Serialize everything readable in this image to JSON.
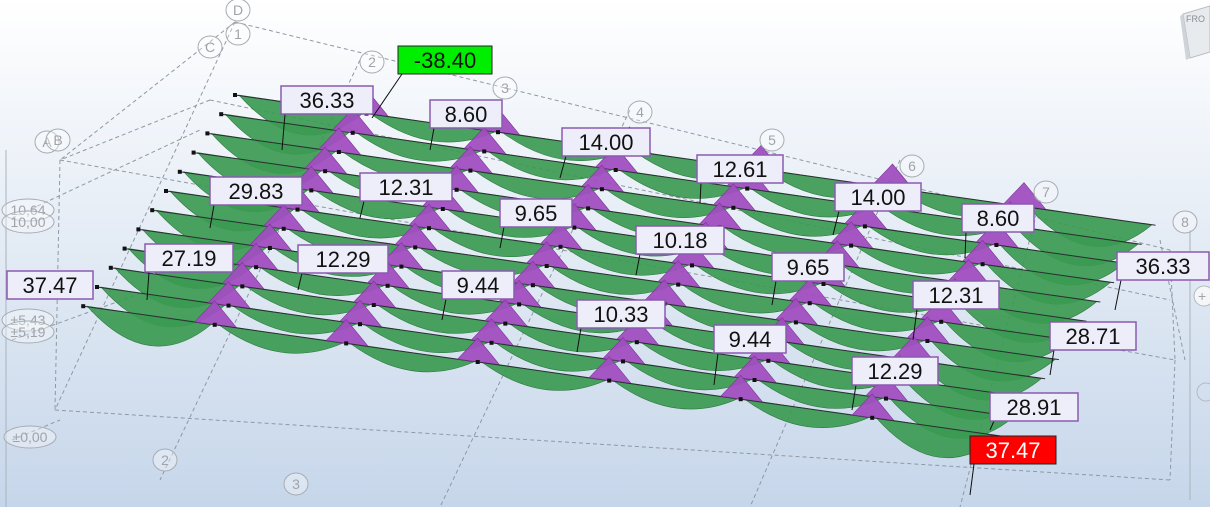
{
  "viewcube": {
    "face_label": "FRO"
  },
  "grid": {
    "axes_numbers": [
      "1",
      "2",
      "3",
      "4",
      "5",
      "6",
      "7",
      "8"
    ],
    "axes_letters": [
      "A",
      "B",
      "C",
      "D"
    ],
    "bottom_numbers": [
      "2",
      "3"
    ],
    "levels": [
      "10,64",
      "10,00",
      "±5,43",
      "±5,19",
      "±0,00"
    ]
  },
  "results": {
    "labels": [
      {
        "value": "-38.40",
        "kind": "min"
      },
      {
        "value": "36.33",
        "kind": "normal"
      },
      {
        "value": "8.60",
        "kind": "normal"
      },
      {
        "value": "14.00",
        "kind": "normal"
      },
      {
        "value": "12.61",
        "kind": "normal"
      },
      {
        "value": "14.00",
        "kind": "normal"
      },
      {
        "value": "8.60",
        "kind": "normal"
      },
      {
        "value": "29.83",
        "kind": "normal"
      },
      {
        "value": "12.31",
        "kind": "normal"
      },
      {
        "value": "9.65",
        "kind": "normal"
      },
      {
        "value": "10.18",
        "kind": "normal"
      },
      {
        "value": "9.65",
        "kind": "normal"
      },
      {
        "value": "36.33",
        "kind": "normal"
      },
      {
        "value": "37.47",
        "kind": "normal"
      },
      {
        "value": "27.19",
        "kind": "normal"
      },
      {
        "value": "12.29",
        "kind": "normal"
      },
      {
        "value": "9.44",
        "kind": "normal"
      },
      {
        "value": "10.33",
        "kind": "normal"
      },
      {
        "value": "9.44",
        "kind": "normal"
      },
      {
        "value": "12.31",
        "kind": "normal"
      },
      {
        "value": "28.71",
        "kind": "normal"
      },
      {
        "value": "12.29",
        "kind": "normal"
      },
      {
        "value": "28.91",
        "kind": "normal"
      },
      {
        "value": "37.47",
        "kind": "max"
      }
    ]
  },
  "colors": {
    "sagging": "#3c9a52",
    "hogging": "#a14ec0",
    "max_fill": "#ff0000",
    "min_fill": "#00ee00",
    "bg_top": "#ffffff",
    "bg_bottom": "#c6d6ea"
  }
}
